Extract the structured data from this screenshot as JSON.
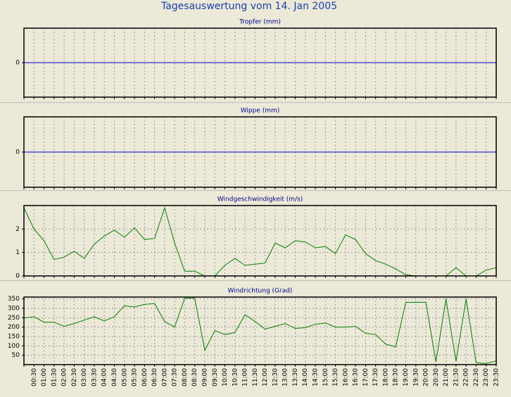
{
  "title": "Tagesauswertung vom 14. Jan 2005",
  "chart_data": [
    {
      "type": "line",
      "title": "Tropfer (mm)",
      "color": "#0000cc",
      "values": [
        0,
        0,
        0,
        0,
        0,
        0,
        0,
        0,
        0,
        0,
        0,
        0,
        0,
        0,
        0,
        0,
        0,
        0,
        0,
        0,
        0,
        0,
        0,
        0,
        0,
        0,
        0,
        0,
        0,
        0,
        0,
        0,
        0,
        0,
        0,
        0,
        0,
        0,
        0,
        0,
        0,
        0,
        0,
        0,
        0,
        0,
        0,
        0
      ],
      "ylim": [
        -1,
        1
      ],
      "yticks": [
        0
      ],
      "grid": true
    },
    {
      "type": "line",
      "title": "Wippe (mm)",
      "color": "#0000cc",
      "values": [
        0,
        0,
        0,
        0,
        0,
        0,
        0,
        0,
        0,
        0,
        0,
        0,
        0,
        0,
        0,
        0,
        0,
        0,
        0,
        0,
        0,
        0,
        0,
        0,
        0,
        0,
        0,
        0,
        0,
        0,
        0,
        0,
        0,
        0,
        0,
        0,
        0,
        0,
        0,
        0,
        0,
        0,
        0,
        0,
        0,
        0,
        0,
        0
      ],
      "ylim": [
        -1,
        1
      ],
      "yticks": [
        0
      ],
      "grid": true
    },
    {
      "type": "line",
      "title": "Windgeschwindigkeit (m/s)",
      "color": "#008000",
      "values": [
        2.9,
        2.0,
        1.5,
        0.7,
        0.8,
        1.05,
        0.75,
        1.35,
        1.7,
        1.95,
        1.65,
        2.05,
        1.55,
        1.6,
        2.9,
        1.4,
        0.2,
        0.2,
        0,
        0,
        0.45,
        0.75,
        0.45,
        0.5,
        0.55,
        1.4,
        1.2,
        1.5,
        1.45,
        1.2,
        1.25,
        0.95,
        1.75,
        1.55,
        0.95,
        0.65,
        0.5,
        0.3,
        0.05,
        0,
        0,
        0,
        0,
        0.35,
        0,
        0,
        0.25,
        0.35
      ],
      "ylim": [
        0,
        3
      ],
      "yticks": [
        0,
        1,
        2
      ],
      "grid": true
    },
    {
      "type": "line",
      "title": "Windrichtung (Grad)",
      "color": "#008000",
      "categories": [
        null,
        "00:30",
        "01:00",
        "01:30",
        "02:00",
        "02:30",
        "03:00",
        "03:30",
        "04:00",
        "04:30",
        "05:00",
        "05:30",
        "06:00",
        "06:30",
        "07:00",
        "07:30",
        "08:00",
        "08:30",
        "09:00",
        "09:30",
        "10:00",
        "10:30",
        "11:00",
        "11:30",
        "12:00",
        "12:30",
        "13:00",
        "13:30",
        "14:00",
        "14:30",
        "15:00",
        "15:30",
        "16:00",
        "16:30",
        "17:00",
        "17:30",
        "18:00",
        "18:30",
        "19:00",
        "19:30",
        "20:00",
        "20:30",
        "21:00",
        "21:30",
        "22:00",
        "22:30",
        "23:00",
        "23:30"
      ],
      "values": [
        248,
        255,
        226,
        226,
        204,
        219,
        237,
        255,
        233,
        255,
        314,
        307,
        321,
        325,
        230,
        200,
        354,
        354,
        76,
        182,
        160,
        171,
        266,
        230,
        189,
        204,
        219,
        193,
        197,
        215,
        222,
        200,
        200,
        204,
        167,
        160,
        109,
        94,
        332,
        332,
        332,
        14,
        350,
        17,
        350,
        10,
        6,
        20
      ],
      "ylim": [
        0,
        360
      ],
      "yticks": [
        50,
        100,
        150,
        200,
        250,
        300,
        350
      ],
      "grid": true
    }
  ]
}
